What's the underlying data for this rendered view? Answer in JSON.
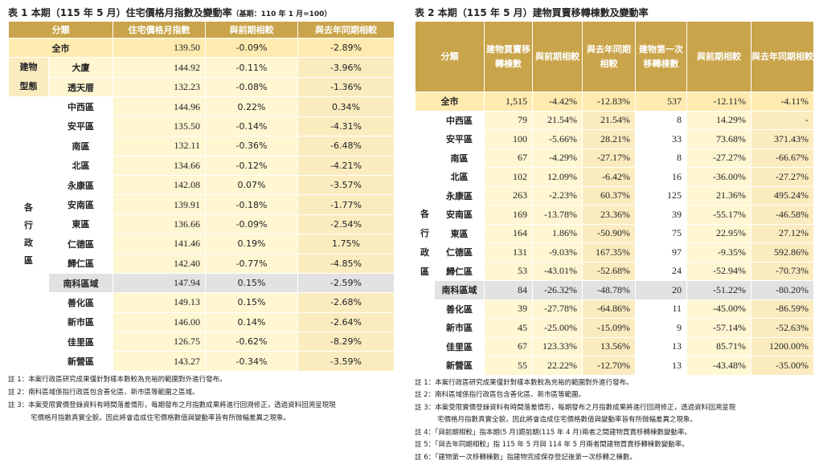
{
  "table1": {
    "title": "表 1 本期（115 年 5 月）住宅價格月指數及變動率",
    "title_note": "（基期：110 年 1 月=100）",
    "headers": [
      "分類",
      "住宅價格月指數",
      "與前期相較",
      "與去年同期相較"
    ],
    "total": {
      "name": "全市",
      "index": "139.50",
      "prev": "-0.09%",
      "yoy": "-2.89%"
    },
    "group1_label": "建物型態",
    "group1_rows": [
      {
        "name": "大廈",
        "index": "144.92",
        "prev": "-0.11%",
        "yoy": "-3.96%"
      },
      {
        "name": "透天厝",
        "index": "132.23",
        "prev": "-0.08%",
        "yoy": "-1.36%"
      }
    ],
    "group2_label": "各行政區",
    "group2_rows": [
      {
        "name": "中西區",
        "index": "144.96",
        "prev": "0.22%",
        "yoy": "0.34%"
      },
      {
        "name": "安平區",
        "index": "135.50",
        "prev": "-0.14%",
        "yoy": "-4.31%"
      },
      {
        "name": "南區",
        "index": "132.11",
        "prev": "-0.36%",
        "yoy": "-6.48%"
      },
      {
        "name": "北區",
        "index": "134.66",
        "prev": "-0.12%",
        "yoy": "-4.21%"
      },
      {
        "name": "永康區",
        "index": "142.08",
        "prev": "0.07%",
        "yoy": "-3.57%"
      },
      {
        "name": "安南區",
        "index": "139.91",
        "prev": "-0.18%",
        "yoy": "-1.77%"
      },
      {
        "name": "東區",
        "index": "136.66",
        "prev": "-0.09%",
        "yoy": "-2.54%"
      },
      {
        "name": "仁德區",
        "index": "141.46",
        "prev": "0.19%",
        "yoy": "1.75%"
      },
      {
        "name": "歸仁區",
        "index": "142.40",
        "prev": "-0.77%",
        "yoy": "-4.85%"
      },
      {
        "name": "南科區域",
        "index": "147.94",
        "prev": "0.15%",
        "yoy": "-2.59%"
      },
      {
        "name": "善化區",
        "index": "149.13",
        "prev": "0.15%",
        "yoy": "-2.68%"
      },
      {
        "name": "新市區",
        "index": "146.00",
        "prev": "0.14%",
        "yoy": "-2.64%"
      },
      {
        "name": "佳里區",
        "index": "126.75",
        "prev": "-0.62%",
        "yoy": "-8.29%"
      },
      {
        "name": "新營區",
        "index": "143.27",
        "prev": "-0.34%",
        "yoy": "-3.59%"
      }
    ],
    "notes": [
      "註 1：本案行政區研究成果僅針對樣本數較為充裕的範圍對外進行發布。",
      "註 2：南科區域係指行政區包含善化區、新市區等範圍之區域。",
      "註 3：本案受限實價登錄資料有時間落差情形，每期發布之月指數成果將進行回溯修正，透過資料回溯呈現現",
      "宅價格月指數真實全貌，因此將會造成住宅價格數值與變動率皆有所微幅差異之現象。"
    ]
  },
  "table2": {
    "title": "表 2 本期（115 年 5 月）建物買賣移轉棟數及變動率",
    "headers": [
      "分類",
      "建物買賣移轉棟數",
      "與前期相較",
      "與去年同期相較",
      "建物第一次移轉棟數",
      "與前期相較",
      "與去年同期相較"
    ],
    "total": {
      "name": "全市",
      "sale": "1,515",
      "sale_prev": "-4.42%",
      "sale_yoy": "-12.83%",
      "first": "537",
      "first_prev": "-12.11%",
      "first_yoy": "-4.11%"
    },
    "group_label": "各行政區",
    "rows": [
      {
        "name": "中西區",
        "sale": "79",
        "sale_prev": "21.54%",
        "sale_yoy": "21.54%",
        "first": "8",
        "first_prev": "14.29%",
        "first_yoy": "-"
      },
      {
        "name": "安平區",
        "sale": "100",
        "sale_prev": "-5.66%",
        "sale_yoy": "28.21%",
        "first": "33",
        "first_prev": "73.68%",
        "first_yoy": "371.43%"
      },
      {
        "name": "南區",
        "sale": "67",
        "sale_prev": "-4.29%",
        "sale_yoy": "-27.17%",
        "first": "8",
        "first_prev": "-27.27%",
        "first_yoy": "-66.67%"
      },
      {
        "name": "北區",
        "sale": "102",
        "sale_prev": "12.09%",
        "sale_yoy": "-6.42%",
        "first": "16",
        "first_prev": "-36.00%",
        "first_yoy": "-27.27%"
      },
      {
        "name": "永康區",
        "sale": "263",
        "sale_prev": "-2.23%",
        "sale_yoy": "60.37%",
        "first": "125",
        "first_prev": "21.36%",
        "first_yoy": "495.24%"
      },
      {
        "name": "安南區",
        "sale": "169",
        "sale_prev": "-13.78%",
        "sale_yoy": "23.36%",
        "first": "39",
        "first_prev": "-55.17%",
        "first_yoy": "-46.58%"
      },
      {
        "name": "東區",
        "sale": "164",
        "sale_prev": "1.86%",
        "sale_yoy": "-50.90%",
        "first": "75",
        "first_prev": "22.95%",
        "first_yoy": "27.12%"
      },
      {
        "name": "仁德區",
        "sale": "131",
        "sale_prev": "-9.03%",
        "sale_yoy": "167.35%",
        "first": "97",
        "first_prev": "-9.35%",
        "first_yoy": "592.86%"
      },
      {
        "name": "歸仁區",
        "sale": "53",
        "sale_prev": "-43.01%",
        "sale_yoy": "-52.68%",
        "first": "24",
        "first_prev": "-52.94%",
        "first_yoy": "-70.73%"
      },
      {
        "name": "南科區域",
        "sale": "84",
        "sale_prev": "-26.32%",
        "sale_yoy": "-48.78%",
        "first": "20",
        "first_prev": "-51.22%",
        "first_yoy": "-80.20%"
      },
      {
        "name": "善化區",
        "sale": "39",
        "sale_prev": "-27.78%",
        "sale_yoy": "-64.86%",
        "first": "11",
        "first_prev": "-45.00%",
        "first_yoy": "-86.59%"
      },
      {
        "name": "新市區",
        "sale": "45",
        "sale_prev": "-25.00%",
        "sale_yoy": "-15.09%",
        "first": "9",
        "first_prev": "-57.14%",
        "first_yoy": "-52.63%"
      },
      {
        "name": "佳里區",
        "sale": "67",
        "sale_prev": "123.33%",
        "sale_yoy": "13.56%",
        "first": "13",
        "first_prev": "85.71%",
        "first_yoy": "1200.00%"
      },
      {
        "name": "新營區",
        "sale": "55",
        "sale_prev": "22.22%",
        "sale_yoy": "-12.70%",
        "first": "13",
        "first_prev": "-43.48%",
        "first_yoy": "-35.00%"
      }
    ],
    "notes": [
      "註 1：本案行政區研究成果僅針對樣本數較為充裕的範圍對外進行發布。",
      "註 2：南科區域係指行政區包含善化區、新市區等範圍。",
      "註 3：本案受限實價登錄資料有時間落差情形，每期發布之月指數成果將進行回溯修正，透過資料回溯呈現",
      "宅價格月指數真實全貌，因此將會造成住宅價格數值與變動率皆有所微幅差異之現象。",
      "註 4：「與前期相較」指本期(5 月)跟前期(115 年 4 月)兩者之間建物買賣移轉棟數變動率。",
      "註 5：「與去年同期相較」指 115 年 5 月與 114 年 5 月兩者間建物買賣移轉棟數變動率。",
      "註 6：「建物第一次移轉棟數」指建物完成保存登記後第一次移轉之棟數。"
    ]
  }
}
